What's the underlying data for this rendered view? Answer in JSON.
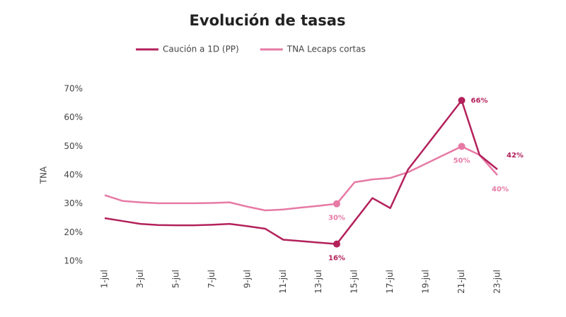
{
  "chart_data": {
    "type": "line",
    "title": "Evolución de tasas",
    "y_label": "TNA",
    "categories": [
      "1-jul",
      null,
      "3-jul",
      null,
      "5-jul",
      null,
      "7-jul",
      null,
      "9-jul",
      null,
      "11-jul",
      null,
      "13-jul",
      null,
      "15-jul",
      null,
      "17-jul",
      null,
      "19-jul",
      null,
      "21-jul",
      null,
      "23-jul"
    ],
    "series": [
      {
        "name": "Caución a 1D (PP)",
        "color": "#b3215b",
        "values": [
          25,
          24,
          23,
          22.6,
          22.5,
          22.5,
          22.7,
          23,
          22.2,
          21.3,
          17.5,
          17,
          16.5,
          16,
          24,
          32,
          28.5,
          42,
          50,
          58,
          66,
          47,
          42
        ],
        "value_labels": [
          null,
          null,
          null,
          null,
          null,
          null,
          null,
          null,
          null,
          null,
          null,
          null,
          null,
          "16%",
          null,
          null,
          null,
          null,
          null,
          null,
          "66%",
          null,
          "42%"
        ]
      },
      {
        "name": "TNA Lecaps cortas",
        "color": "#e67aa5",
        "values": [
          33,
          31,
          30.5,
          30.2,
          30.2,
          30.2,
          30.3,
          30.5,
          29,
          27.7,
          28,
          28.7,
          29.3,
          30,
          37.5,
          38.5,
          39,
          41,
          44,
          47,
          50,
          47,
          40
        ],
        "value_labels": [
          null,
          null,
          null,
          null,
          null,
          null,
          null,
          null,
          null,
          null,
          null,
          null,
          null,
          "30%",
          null,
          null,
          null,
          null,
          null,
          null,
          "50%",
          null,
          "40%"
        ]
      }
    ],
    "ylim": [
      10,
      70
    ],
    "yticks": [
      {
        "value": 10,
        "label": "10%"
      },
      {
        "value": 20,
        "label": "20%"
      },
      {
        "value": 30,
        "label": "30%"
      },
      {
        "value": 40,
        "label": "40%"
      },
      {
        "value": 50,
        "label": "50%"
      },
      {
        "value": 60,
        "label": "60%"
      },
      {
        "value": 70,
        "label": "70%"
      }
    ],
    "grid": false
  }
}
